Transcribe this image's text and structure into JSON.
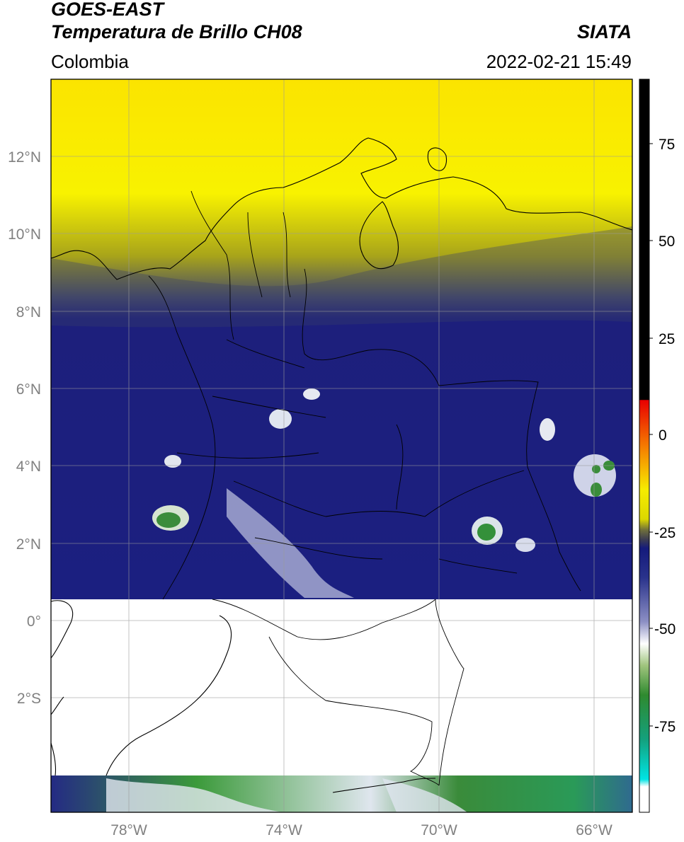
{
  "header": {
    "satellite": "GOES-EAST",
    "product": "Temperatura de Brillo CH08",
    "region": "Colombia",
    "agency": "SIATA",
    "datetime": "2022-02-21 15:49"
  },
  "map": {
    "lon_ticks": [
      "78°W",
      "74°W",
      "70°W",
      "66°W"
    ],
    "lat_ticks": [
      "12°N",
      "10°N",
      "8°N",
      "6°N",
      "4°N",
      "2°N",
      "0°",
      "2°S"
    ],
    "lon_range": [
      -80,
      -65
    ],
    "lat_range": [
      -5,
      14
    ],
    "no_data_band_lat": [
      -4,
      0.6
    ]
  },
  "colorbar": {
    "tick_labels": [
      "75",
      "50",
      "25",
      "0",
      "-25",
      "-50",
      "-75"
    ],
    "range": [
      -100,
      90
    ],
    "colors": {
      "above": "#000000",
      "warm": [
        "#e00000",
        "#f07000",
        "#f5f000"
      ],
      "mid": [
        "#4a4a4a",
        "#15187a"
      ],
      "cold": [
        "#ffffff",
        "#2e8a2e",
        "#17b07a",
        "#00e0e0"
      ]
    }
  }
}
